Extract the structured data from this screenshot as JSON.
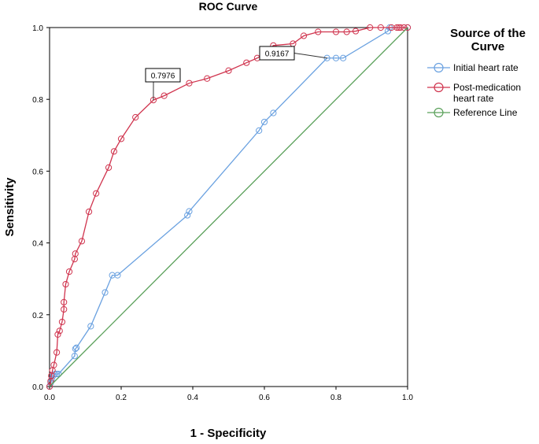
{
  "chart_data": {
    "type": "line",
    "title": "ROC Curve",
    "xlabel": "1 - Specificity",
    "ylabel": "Sensitivity",
    "xlim": [
      0,
      1
    ],
    "ylim": [
      0,
      1
    ],
    "x_ticks": [
      "0.0",
      "0.2",
      "0.4",
      "0.6",
      "0.8",
      "1.0"
    ],
    "y_ticks": [
      "0.0",
      "0.2",
      "0.4",
      "0.6",
      "0.8",
      "1.0"
    ],
    "legend": {
      "title_line1": "Source of the",
      "title_line2": "Curve",
      "position": "right"
    },
    "series": [
      {
        "name": "Initial heart rate",
        "name_line1": "Initial heart rate",
        "name_line2": "",
        "color": "#6aa1e0",
        "markers": true,
        "x": [
          0,
          0.003,
          0.006,
          0.01,
          0.015,
          0.02,
          0.025,
          0.07,
          0.072,
          0.075,
          0.115,
          0.155,
          0.175,
          0.19,
          0.385,
          0.39,
          0.585,
          0.6,
          0.625,
          0.775,
          0.8,
          0.82,
          0.945,
          0.95,
          1
        ],
        "y": [
          0,
          0.01,
          0.02,
          0.03,
          0.035,
          0.035,
          0.035,
          0.085,
          0.105,
          0.108,
          0.168,
          0.262,
          0.31,
          0.31,
          0.477,
          0.488,
          0.713,
          0.737,
          0.762,
          0.915,
          0.915,
          0.915,
          0.99,
          1,
          1
        ]
      },
      {
        "name": "Post-medication heart rate",
        "name_line1": "Post-medication",
        "name_line2": "heart rate",
        "color": "#d0344e",
        "markers": true,
        "x": [
          0,
          0.003,
          0.005,
          0.008,
          0.012,
          0.02,
          0.023,
          0.028,
          0.035,
          0.04,
          0.04,
          0.045,
          0.055,
          0.07,
          0.072,
          0.09,
          0.11,
          0.13,
          0.165,
          0.18,
          0.2,
          0.24,
          0.29,
          0.32,
          0.39,
          0.44,
          0.5,
          0.55,
          0.58,
          0.6,
          0.625,
          0.68,
          0.71,
          0.75,
          0.8,
          0.83,
          0.855,
          0.895,
          0.925,
          0.955,
          0.97,
          0.975,
          0.98,
          0.99,
          1
        ],
        "y": [
          0,
          0.015,
          0.03,
          0.045,
          0.06,
          0.095,
          0.145,
          0.155,
          0.18,
          0.215,
          0.235,
          0.285,
          0.32,
          0.355,
          0.37,
          0.405,
          0.487,
          0.538,
          0.61,
          0.655,
          0.69,
          0.75,
          0.798,
          0.81,
          0.845,
          0.858,
          0.88,
          0.902,
          0.915,
          0.925,
          0.95,
          0.955,
          0.977,
          0.988,
          0.988,
          0.988,
          0.99,
          1,
          1,
          1,
          1,
          1,
          1,
          1,
          1
        ]
      },
      {
        "name": "Reference Line",
        "name_line1": "Reference Line",
        "name_line2": "",
        "color": "#5aa05a",
        "markers": false,
        "x": [
          0,
          1
        ],
        "y": [
          0,
          1
        ]
      }
    ],
    "annotations": [
      {
        "text": "0.7976",
        "x": 0.29,
        "y": 0.798,
        "series": "Post-medication heart rate"
      },
      {
        "text": "0.9167",
        "x": 0.775,
        "y": 0.915,
        "series": "Initial heart rate"
      }
    ]
  }
}
